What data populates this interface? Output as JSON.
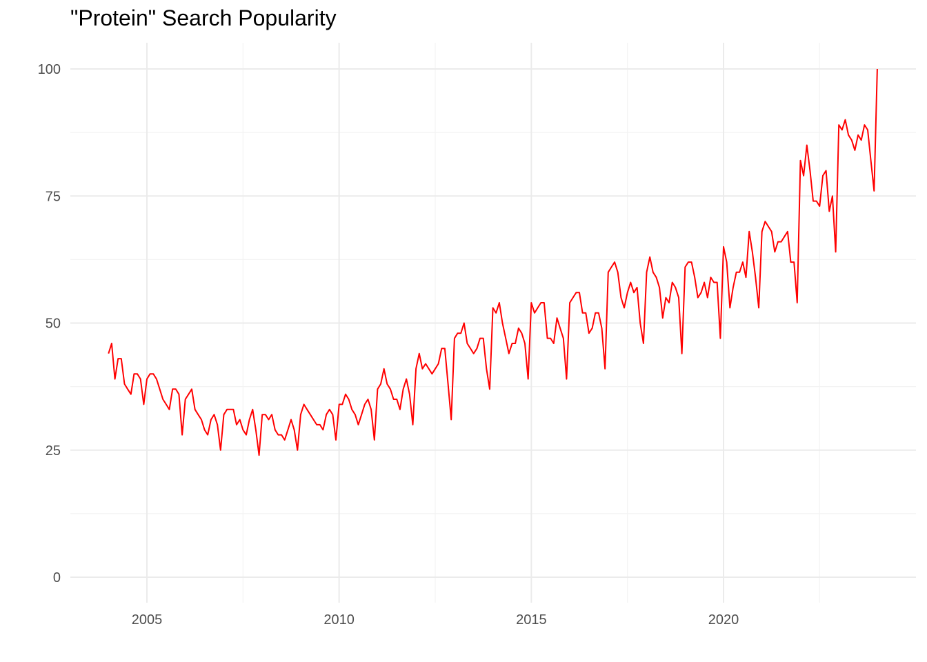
{
  "chart_data": {
    "type": "line",
    "title": "\"Protein\" Search Popularity",
    "xlabel": "",
    "ylabel": "",
    "x_axis_type": "date",
    "x_ticks": [
      "2005",
      "2010",
      "2015",
      "2020"
    ],
    "y_ticks": [
      "0",
      "25",
      "50",
      "75",
      "100"
    ],
    "xlim": [
      "2003-06",
      "2024-06"
    ],
    "ylim": [
      0,
      100
    ],
    "grid": true,
    "legend": "none",
    "series": [
      {
        "color": "#ff0000",
        "x": [
          "2004-01",
          "2004-02",
          "2004-03",
          "2004-04",
          "2004-05",
          "2004-06",
          "2004-07",
          "2004-08",
          "2004-09",
          "2004-10",
          "2004-11",
          "2004-12",
          "2005-01",
          "2005-02",
          "2005-03",
          "2005-04",
          "2005-05",
          "2005-06",
          "2005-07",
          "2005-08",
          "2005-09",
          "2005-10",
          "2005-11",
          "2005-12",
          "2006-01",
          "2006-02",
          "2006-03",
          "2006-04",
          "2006-05",
          "2006-06",
          "2006-07",
          "2006-08",
          "2006-09",
          "2006-10",
          "2006-11",
          "2006-12",
          "2007-01",
          "2007-02",
          "2007-03",
          "2007-04",
          "2007-05",
          "2007-06",
          "2007-07",
          "2007-08",
          "2007-09",
          "2007-10",
          "2007-11",
          "2007-12",
          "2008-01",
          "2008-02",
          "2008-03",
          "2008-04",
          "2008-05",
          "2008-06",
          "2008-07",
          "2008-08",
          "2008-09",
          "2008-10",
          "2008-11",
          "2008-12",
          "2009-01",
          "2009-02",
          "2009-03",
          "2009-04",
          "2009-05",
          "2009-06",
          "2009-07",
          "2009-08",
          "2009-09",
          "2009-10",
          "2009-11",
          "2009-12",
          "2010-01",
          "2010-02",
          "2010-03",
          "2010-04",
          "2010-05",
          "2010-06",
          "2010-07",
          "2010-08",
          "2010-09",
          "2010-10",
          "2010-11",
          "2010-12",
          "2011-01",
          "2011-02",
          "2011-03",
          "2011-04",
          "2011-05",
          "2011-06",
          "2011-07",
          "2011-08",
          "2011-09",
          "2011-10",
          "2011-11",
          "2011-12",
          "2012-01",
          "2012-02",
          "2012-03",
          "2012-04",
          "2012-05",
          "2012-06",
          "2012-07",
          "2012-08",
          "2012-09",
          "2012-10",
          "2012-11",
          "2012-12",
          "2013-01",
          "2013-02",
          "2013-03",
          "2013-04",
          "2013-05",
          "2013-06",
          "2013-07",
          "2013-08",
          "2013-09",
          "2013-10",
          "2013-11",
          "2013-12",
          "2014-01",
          "2014-02",
          "2014-03",
          "2014-04",
          "2014-05",
          "2014-06",
          "2014-07",
          "2014-08",
          "2014-09",
          "2014-10",
          "2014-11",
          "2014-12",
          "2015-01",
          "2015-02",
          "2015-03",
          "2015-04",
          "2015-05",
          "2015-06",
          "2015-07",
          "2015-08",
          "2015-09",
          "2015-10",
          "2015-11",
          "2015-12",
          "2016-01",
          "2016-02",
          "2016-03",
          "2016-04",
          "2016-05",
          "2016-06",
          "2016-07",
          "2016-08",
          "2016-09",
          "2016-10",
          "2016-11",
          "2016-12",
          "2017-01",
          "2017-02",
          "2017-03",
          "2017-04",
          "2017-05",
          "2017-06",
          "2017-07",
          "2017-08",
          "2017-09",
          "2017-10",
          "2017-11",
          "2017-12",
          "2018-01",
          "2018-02",
          "2018-03",
          "2018-04",
          "2018-05",
          "2018-06",
          "2018-07",
          "2018-08",
          "2018-09",
          "2018-10",
          "2018-11",
          "2018-12",
          "2019-01",
          "2019-02",
          "2019-03",
          "2019-04",
          "2019-05",
          "2019-06",
          "2019-07",
          "2019-08",
          "2019-09",
          "2019-10",
          "2019-11",
          "2019-12",
          "2020-01",
          "2020-02",
          "2020-03",
          "2020-04",
          "2020-05",
          "2020-06",
          "2020-07",
          "2020-08",
          "2020-09",
          "2020-10",
          "2020-11",
          "2020-12",
          "2021-01",
          "2021-02",
          "2021-03",
          "2021-04",
          "2021-05",
          "2021-06",
          "2021-07",
          "2021-08",
          "2021-09",
          "2021-10",
          "2021-11",
          "2021-12",
          "2022-01",
          "2022-02",
          "2022-03",
          "2022-04",
          "2022-05",
          "2022-06",
          "2022-07",
          "2022-08",
          "2022-09",
          "2022-10",
          "2022-11",
          "2022-12",
          "2023-01",
          "2023-02",
          "2023-03",
          "2023-04",
          "2023-05",
          "2023-06",
          "2023-07",
          "2023-08",
          "2023-09",
          "2023-10",
          "2023-11",
          "2023-12",
          "2024-01"
        ],
        "values": [
          44,
          46,
          39,
          43,
          43,
          38,
          37,
          36,
          40,
          40,
          39,
          34,
          39,
          40,
          40,
          39,
          37,
          35,
          34,
          33,
          37,
          37,
          36,
          28,
          35,
          36,
          37,
          33,
          32,
          31,
          29,
          28,
          31,
          32,
          30,
          25,
          32,
          33,
          33,
          33,
          30,
          31,
          29,
          28,
          31,
          33,
          29,
          24,
          32,
          32,
          31,
          32,
          29,
          28,
          28,
          27,
          29,
          31,
          29,
          25,
          32,
          34,
          33,
          32,
          31,
          30,
          30,
          29,
          32,
          33,
          32,
          27,
          34,
          34,
          36,
          35,
          33,
          32,
          30,
          32,
          34,
          35,
          33,
          27,
          37,
          38,
          41,
          38,
          37,
          35,
          35,
          33,
          37,
          39,
          36,
          30,
          41,
          44,
          41,
          42,
          41,
          40,
          41,
          42,
          45,
          45,
          38,
          31,
          47,
          48,
          48,
          50,
          46,
          45,
          44,
          45,
          47,
          47,
          41,
          37,
          53,
          52,
          54,
          50,
          47,
          44,
          46,
          46,
          49,
          48,
          46,
          39,
          54,
          52,
          53,
          54,
          54,
          47,
          47,
          46,
          51,
          49,
          47,
          39,
          54,
          55,
          56,
          56,
          52,
          52,
          48,
          49,
          52,
          52,
          49,
          41,
          60,
          61,
          62,
          60,
          55,
          53,
          56,
          58,
          56,
          57,
          50,
          46,
          60,
          63,
          60,
          59,
          57,
          51,
          55,
          54,
          58,
          57,
          55,
          44,
          61,
          62,
          62,
          59,
          55,
          56,
          58,
          55,
          59,
          58,
          58,
          47,
          65,
          62,
          53,
          57,
          60,
          60,
          62,
          59,
          68,
          64,
          59,
          53,
          68,
          70,
          69,
          68,
          64,
          66,
          66,
          67,
          68,
          62,
          62,
          54,
          82,
          79,
          85,
          80,
          74,
          74,
          73,
          79,
          80,
          72,
          75,
          64,
          89,
          88,
          90,
          87,
          86,
          84,
          87,
          86,
          89,
          88,
          82,
          76,
          100
        ]
      }
    ]
  }
}
